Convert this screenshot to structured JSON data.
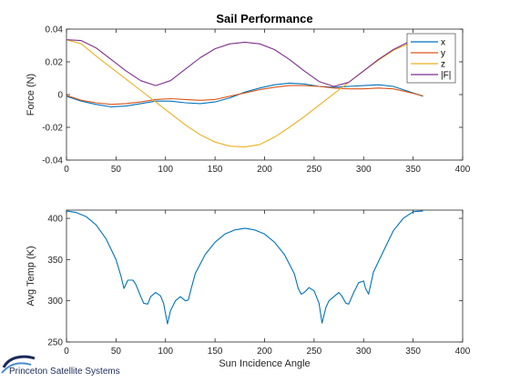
{
  "footer": {
    "company": "Princeton Satellite Systems"
  },
  "chart_data": [
    {
      "type": "line",
      "title": "Sail Performance",
      "xlabel": "",
      "ylabel": "Force (N)",
      "xlim": [
        0,
        400
      ],
      "ylim": [
        -0.04,
        0.04
      ],
      "xticks": [
        "0",
        "50",
        "100",
        "150",
        "200",
        "250",
        "300",
        "350",
        "400"
      ],
      "yticks": [
        "-0.04",
        "-0.02",
        "0",
        "0.02",
        "0.04"
      ],
      "grid": false,
      "legend_position": "top-right",
      "x": [
        0,
        15,
        30,
        45,
        60,
        75,
        90,
        105,
        120,
        135,
        150,
        165,
        180,
        195,
        210,
        225,
        240,
        255,
        270,
        285,
        300,
        315,
        330,
        345,
        360
      ],
      "series": [
        {
          "name": "x",
          "color": "#0072BD",
          "values": [
            -0.001,
            -0.004,
            -0.006,
            -0.0075,
            -0.007,
            -0.0055,
            -0.004,
            -0.004,
            -0.005,
            -0.0055,
            -0.0045,
            -0.002,
            0.0015,
            0.004,
            0.006,
            0.007,
            0.0065,
            0.005,
            0.0045,
            0.005,
            0.0055,
            0.006,
            0.005,
            0.002,
            -0.001
          ]
        },
        {
          "name": "y",
          "color": "#D95319",
          "values": [
            -0.0005,
            -0.0035,
            -0.005,
            -0.006,
            -0.0055,
            -0.0045,
            -0.003,
            -0.0025,
            -0.003,
            -0.0035,
            -0.003,
            -0.001,
            0.001,
            0.003,
            0.0045,
            0.0055,
            0.0055,
            0.005,
            0.004,
            0.0035,
            0.0035,
            0.004,
            0.0035,
            0.0015,
            -0.0008
          ]
        },
        {
          "name": "z",
          "color": "#EDB120",
          "values": [
            0.0335,
            0.031,
            0.0235,
            0.0165,
            0.0095,
            0.0025,
            -0.0045,
            -0.0115,
            -0.0185,
            -0.0245,
            -0.029,
            -0.0315,
            -0.032,
            -0.0305,
            -0.026,
            -0.02,
            -0.0135,
            -0.0065,
            0.0005,
            0.0075,
            0.0145,
            0.021,
            0.027,
            0.031,
            0.0335
          ]
        },
        {
          "name": "|F|",
          "color": "#7E2F8E",
          "values": [
            0.0335,
            0.033,
            0.0285,
            0.0215,
            0.0145,
            0.0085,
            0.0055,
            0.0085,
            0.0155,
            0.0225,
            0.028,
            0.031,
            0.032,
            0.031,
            0.0275,
            0.0215,
            0.0145,
            0.008,
            0.005,
            0.0075,
            0.0145,
            0.0215,
            0.0275,
            0.032,
            0.0335
          ]
        }
      ]
    },
    {
      "type": "line",
      "title": "",
      "xlabel": "Sun Incidence Angle",
      "ylabel": "Avg Temp (K)",
      "xlim": [
        0,
        400
      ],
      "ylim": [
        250,
        410
      ],
      "xticks": [
        "0",
        "50",
        "100",
        "150",
        "200",
        "250",
        "300",
        "350",
        "400"
      ],
      "yticks": [
        "250",
        "300",
        "350",
        "400"
      ],
      "grid": false,
      "series": [
        {
          "name": "",
          "color": "#0072BD",
          "x": [
            0,
            10,
            20,
            30,
            40,
            50,
            55,
            58,
            62,
            67,
            70,
            75,
            78,
            82,
            85,
            90,
            95,
            98,
            100,
            102,
            105,
            110,
            115,
            120,
            123,
            126,
            130,
            140,
            150,
            160,
            170,
            180,
            190,
            200,
            210,
            220,
            230,
            234,
            237,
            240,
            245,
            250,
            255,
            258,
            262,
            265,
            270,
            275,
            278,
            282,
            285,
            290,
            295,
            300,
            302,
            305,
            310,
            320,
            330,
            340,
            350,
            360
          ],
          "values": [
            409,
            407,
            402,
            392,
            375,
            350,
            330,
            315,
            325,
            325,
            320,
            305,
            297,
            296,
            305,
            310,
            306,
            297,
            284,
            272,
            288,
            300,
            305,
            300,
            301,
            315,
            333,
            356,
            371,
            381,
            386,
            388,
            386,
            381,
            371,
            356,
            333,
            315,
            308,
            310,
            316,
            312,
            297,
            273,
            292,
            300,
            305,
            310,
            306,
            297,
            296,
            310,
            322,
            324,
            315,
            308,
            335,
            360,
            385,
            400,
            408,
            409
          ]
        }
      ]
    }
  ]
}
